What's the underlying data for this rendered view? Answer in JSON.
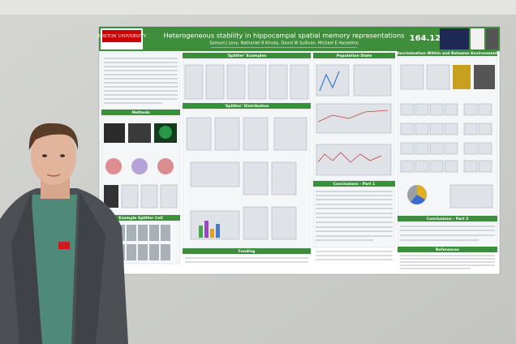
{
  "poster": {
    "institution": "BOSTON UNIVERSITY",
    "title": "Heterogeneous stability in hippocampal spatial memory representations",
    "authors": "Samuel J Levy, Nathaniel R Kinsky, David W Sullivan, Michael E Hasselmo",
    "abstract_number": "164.12",
    "sections": [
      "'Splitter' Examples",
      "Population State",
      "Discrimination Within and Between Environments",
      "Methods",
      "'Splitter' Distribution",
      "Example Splitter Cell",
      "Conclusions - Part 1",
      "Conclusions - Part 2",
      "Funding",
      "References"
    ]
  }
}
